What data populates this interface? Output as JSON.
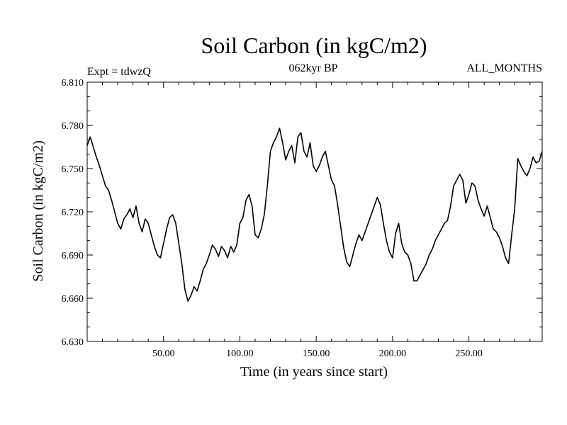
{
  "chart_data": {
    "type": "line",
    "title": "Soil Carbon (in kgC/m2)",
    "subtitle": "062kyr BP",
    "left_label": "Expt = tdwzQ",
    "right_label": "ALL_MONTHS",
    "xlabel": "Time (in years since start)",
    "ylabel": "Soil Carbon (in kgC/m2)",
    "xlim": [
      0,
      298
    ],
    "ylim": [
      6.63,
      6.81
    ],
    "xticks": [
      50,
      100,
      150,
      200,
      250
    ],
    "xtick_labels": [
      "50.00",
      "100.00",
      "150.00",
      "200.00",
      "250.00"
    ],
    "yticks": [
      6.63,
      6.66,
      6.69,
      6.72,
      6.75,
      6.78,
      6.81
    ],
    "ytick_labels": [
      "6.630",
      "6.660",
      "6.690",
      "6.720",
      "6.750",
      "6.780",
      "6.810"
    ],
    "series": [
      {
        "name": "Soil Carbon",
        "x": [
          0,
          2,
          4,
          6,
          8,
          10,
          12,
          14,
          16,
          18,
          20,
          22,
          24,
          26,
          28,
          30,
          32,
          34,
          36,
          38,
          40,
          42,
          44,
          46,
          48,
          50,
          52,
          54,
          56,
          58,
          60,
          62,
          64,
          66,
          68,
          70,
          72,
          74,
          76,
          78,
          80,
          82,
          84,
          86,
          88,
          90,
          92,
          94,
          96,
          98,
          100,
          102,
          104,
          106,
          108,
          110,
          112,
          114,
          116,
          118,
          120,
          122,
          124,
          126,
          128,
          130,
          132,
          134,
          136,
          138,
          140,
          142,
          144,
          146,
          148,
          150,
          152,
          154,
          156,
          158,
          160,
          162,
          164,
          166,
          168,
          170,
          172,
          174,
          176,
          178,
          180,
          182,
          184,
          186,
          188,
          190,
          192,
          194,
          196,
          198,
          200,
          202,
          204,
          206,
          208,
          210,
          212,
          214,
          216,
          218,
          220,
          222,
          224,
          226,
          228,
          230,
          232,
          234,
          236,
          238,
          240,
          242,
          244,
          246,
          248,
          250,
          252,
          254,
          256,
          258,
          260,
          262,
          264,
          266,
          268,
          270,
          272,
          274,
          276,
          278,
          280,
          282,
          284,
          286,
          288,
          290,
          292,
          294,
          296,
          298
        ],
        "values": [
          6.766,
          6.772,
          6.765,
          6.758,
          6.752,
          6.745,
          6.738,
          6.735,
          6.728,
          6.72,
          6.712,
          6.708,
          6.715,
          6.718,
          6.722,
          6.716,
          6.724,
          6.712,
          6.706,
          6.715,
          6.712,
          6.704,
          6.696,
          6.69,
          6.688,
          6.698,
          6.708,
          6.716,
          6.718,
          6.712,
          6.698,
          6.684,
          6.666,
          6.658,
          6.662,
          6.668,
          6.665,
          6.672,
          6.68,
          6.684,
          6.69,
          6.697,
          6.694,
          6.689,
          6.696,
          6.693,
          6.688,
          6.696,
          6.692,
          6.697,
          6.712,
          6.716,
          6.728,
          6.732,
          6.724,
          6.704,
          6.702,
          6.708,
          6.718,
          6.738,
          6.762,
          6.768,
          6.772,
          6.778,
          6.768,
          6.756,
          6.762,
          6.766,
          6.754,
          6.772,
          6.775,
          6.762,
          6.758,
          6.768,
          6.752,
          6.748,
          6.752,
          6.758,
          6.762,
          6.752,
          6.742,
          6.738,
          6.725,
          6.71,
          6.695,
          6.685,
          6.682,
          6.69,
          6.698,
          6.704,
          6.7,
          6.706,
          6.712,
          6.718,
          6.724,
          6.73,
          6.725,
          6.712,
          6.7,
          6.692,
          6.688,
          6.705,
          6.712,
          6.698,
          6.692,
          6.69,
          6.684,
          6.672,
          6.672,
          6.676,
          6.68,
          6.684,
          6.69,
          6.694,
          6.7,
          6.704,
          6.708,
          6.712,
          6.714,
          6.724,
          6.738,
          6.742,
          6.746,
          6.742,
          6.726,
          6.732,
          6.74,
          6.738,
          6.728,
          6.722,
          6.717,
          6.724,
          6.716,
          6.708,
          6.706,
          6.702,
          6.696,
          6.688,
          6.684,
          6.704,
          6.722,
          6.757,
          6.752,
          6.748,
          6.745,
          6.75,
          6.758,
          6.754,
          6.755,
          6.762
        ]
      }
    ]
  }
}
